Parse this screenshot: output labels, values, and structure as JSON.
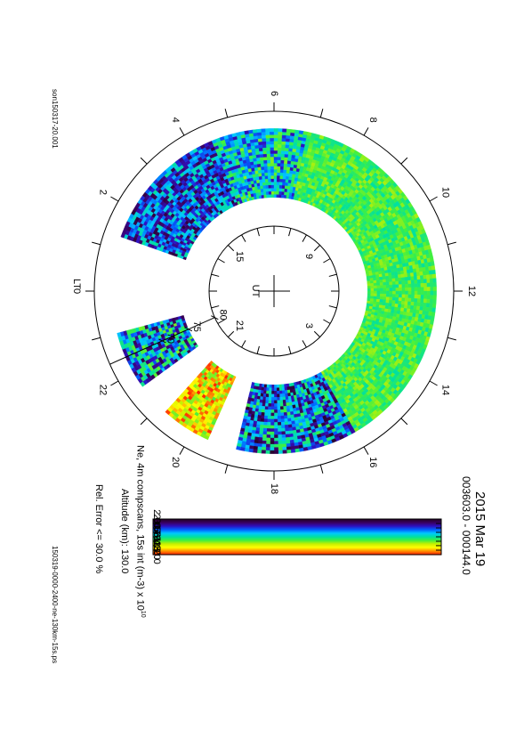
{
  "page": {
    "filename_left": "son150317-20.001",
    "filename_bottom": "150319-0000-2400-ne-130km-15s.ps"
  },
  "header": {
    "date": "2015 Mar 19",
    "time_range": "003603.0 - 000144.0"
  },
  "info": {
    "parameter": "Ne, 4m compscans, 15s int (m-3) x 10",
    "parameter_exp": "10",
    "altitude": "Altitude (km): 130.0",
    "rel_error": "Rel. Error <= 30.0 %"
  },
  "chart_data": {
    "type": "heatmap",
    "projection": "polar, magnetic latitude vs local time",
    "outer_lt_label": "LT",
    "inner_ut_label": "UT",
    "outer_hour_labels": [
      "0",
      "2",
      "4",
      "6",
      "8",
      "10",
      "12",
      "14",
      "16",
      "18",
      "20",
      "22"
    ],
    "outer_hour_values": [
      0,
      2,
      4,
      6,
      8,
      10,
      12,
      14,
      16,
      18,
      20,
      22
    ],
    "inner_ut_labels": [
      "3",
      "9",
      "15",
      "21"
    ],
    "inner_ut_values": [
      3,
      9,
      15,
      21
    ],
    "latitude_labels": [
      "70",
      "75",
      "80"
    ],
    "latitude_values": [
      70,
      75,
      80
    ],
    "outer_circle_latitude": 60,
    "inner_circle_latitude": 80,
    "data_ring_latitude_range": [
      63,
      75
    ],
    "colorbar": {
      "tick_labels": [
        "2.00",
        "2.67",
        "3.56",
        "4.74",
        "6.32",
        "8.43",
        "11.2",
        "15.0",
        "20.0"
      ],
      "tick_values": [
        2.0,
        2.67,
        3.56,
        4.74,
        6.32,
        8.43,
        11.2,
        15.0,
        20.0
      ],
      "scale": "log",
      "range": [
        2.0,
        20.0
      ]
    },
    "sectors": [
      {
        "lt_start": 1.3,
        "lt_end": 4.5,
        "value_range": [
          2.2,
          6.5
        ]
      },
      {
        "lt_start": 4.5,
        "lt_end": 6.8,
        "value_range": [
          3.0,
          9.0
        ]
      },
      {
        "lt_start": 6.8,
        "lt_end": 16.0,
        "value_range": [
          6.3,
          9.5
        ]
      },
      {
        "lt_start": 16.0,
        "lt_end": 18.9,
        "value_range": [
          2.1,
          8.0
        ]
      },
      {
        "lt_start": 19.6,
        "lt_end": 20.8,
        "value_range": [
          8.0,
          20.0
        ]
      },
      {
        "lt_start": 21.6,
        "lt_end": 23.0,
        "value_range": [
          2.3,
          9.0
        ]
      }
    ]
  },
  "colors": {
    "colormap": [
      "#200020",
      "#3a0060",
      "#2f10c0",
      "#0060ff",
      "#00c8ff",
      "#00e0a0",
      "#40f040",
      "#c8f000",
      "#ffff00",
      "#ff9000",
      "#ff2000"
    ]
  }
}
